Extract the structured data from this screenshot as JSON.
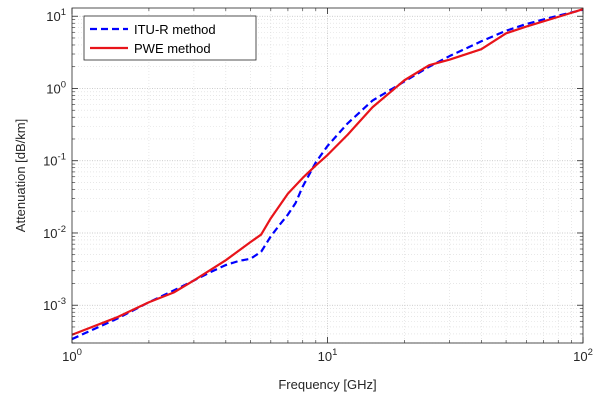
{
  "chart_data": {
    "type": "line",
    "title": "",
    "xlabel": "Frequency [GHz]",
    "ylabel": "Attenuation [dB/km]",
    "xscale": "log",
    "yscale": "log",
    "xlim": [
      1,
      100
    ],
    "ylim": [
      0.0003,
      13
    ],
    "grid": true,
    "minor_grid": true,
    "legend_position": "top-left",
    "x_ticks": [
      {
        "value": 1,
        "base": "10",
        "exp": "0"
      },
      {
        "value": 10,
        "base": "10",
        "exp": "1"
      },
      {
        "value": 100,
        "base": "10",
        "exp": "2"
      }
    ],
    "y_ticks": [
      {
        "value": 0.001,
        "base": "10",
        "exp": "-3"
      },
      {
        "value": 0.01,
        "base": "10",
        "exp": "-2"
      },
      {
        "value": 0.1,
        "base": "10",
        "exp": "-1"
      },
      {
        "value": 1,
        "base": "10",
        "exp": "0"
      },
      {
        "value": 10,
        "base": "10",
        "exp": "1"
      }
    ],
    "series": [
      {
        "name": "ITU-R method",
        "color": "#0000FF",
        "style": "dashed",
        "x": [
          1,
          1.5,
          2,
          2.5,
          3,
          3.5,
          4,
          4.5,
          5,
          5.5,
          6,
          6.5,
          7,
          7.5,
          8,
          9,
          10,
          12,
          15,
          20,
          25,
          30,
          40,
          50,
          60,
          80,
          100
        ],
        "y": [
          0.00034,
          0.00065,
          0.0011,
          0.0016,
          0.0022,
          0.0029,
          0.0036,
          0.0041,
          0.0044,
          0.0055,
          0.009,
          0.013,
          0.018,
          0.026,
          0.044,
          0.095,
          0.16,
          0.33,
          0.68,
          1.25,
          2.0,
          2.8,
          4.5,
          6.3,
          7.8,
          10.2,
          12.3
        ]
      },
      {
        "name": "PWE method",
        "color": "#E8141A",
        "style": "solid",
        "x": [
          1,
          1.5,
          2,
          2.5,
          3,
          4,
          5,
          5.5,
          6,
          7,
          8,
          9,
          10,
          12,
          15,
          20,
          25,
          30,
          40,
          50,
          60,
          80,
          100
        ],
        "y": [
          0.00039,
          0.00068,
          0.0011,
          0.0015,
          0.0022,
          0.0042,
          0.0075,
          0.0095,
          0.016,
          0.035,
          0.058,
          0.086,
          0.12,
          0.23,
          0.55,
          1.3,
          2.1,
          2.5,
          3.5,
          5.8,
          7.2,
          9.8,
          12.5
        ]
      }
    ]
  }
}
